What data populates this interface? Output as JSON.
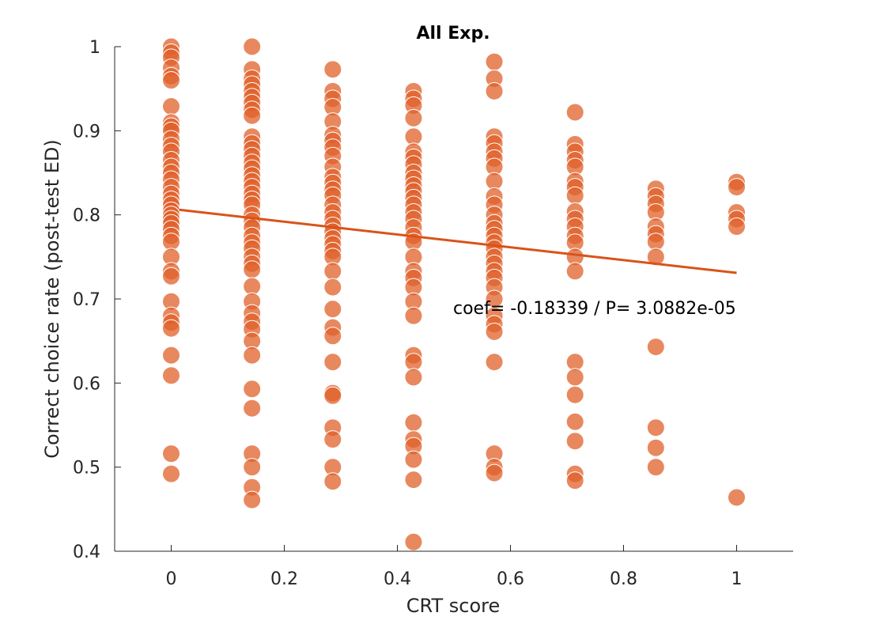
{
  "chart_data": {
    "type": "scatter",
    "title": "All Exp.",
    "xlabel": "CRT score",
    "ylabel": "Correct choice rate (post-test ED)",
    "xlim": [
      -0.1,
      1.1
    ],
    "ylim": [
      0.4,
      1.0
    ],
    "xticks": [
      "0",
      "0.2",
      "0.4",
      "0.6",
      "0.8",
      "1"
    ],
    "xtick_values": [
      0,
      0.2,
      0.4,
      0.6,
      0.8,
      1
    ],
    "yticks": [
      "0.4",
      "0.5",
      "0.6",
      "0.7",
      "0.8",
      "0.9",
      "1"
    ],
    "ytick_values": [
      0.4,
      0.5,
      0.6,
      0.7,
      0.8,
      0.9,
      1.0
    ],
    "grid": false,
    "annotation": "coef= -0.18339 / P= 3.0882e-05",
    "colors": {
      "marker": "#e0602a",
      "marker_edge": "#ffffff",
      "fit_line": "#d95319",
      "axis": "#262626"
    },
    "fit_line": {
      "x": [
        0.0143,
        1.0
      ],
      "y": [
        0.806,
        0.731
      ]
    },
    "series": [
      {
        "points": [
          [
            0,
            1.0
          ],
          [
            0,
            0.993
          ],
          [
            0,
            0.987
          ],
          [
            0,
            0.975
          ],
          [
            0,
            0.965
          ],
          [
            0,
            0.96
          ],
          [
            0,
            0.929
          ],
          [
            0,
            0.91
          ],
          [
            0,
            0.905
          ],
          [
            0,
            0.9
          ],
          [
            0,
            0.89
          ],
          [
            0,
            0.882
          ],
          [
            0,
            0.875
          ],
          [
            0,
            0.865
          ],
          [
            0,
            0.857
          ],
          [
            0,
            0.85
          ],
          [
            0,
            0.842
          ],
          [
            0,
            0.833
          ],
          [
            0,
            0.825
          ],
          [
            0,
            0.818
          ],
          [
            0,
            0.812
          ],
          [
            0,
            0.805
          ],
          [
            0,
            0.8
          ],
          [
            0,
            0.795
          ],
          [
            0,
            0.79
          ],
          [
            0,
            0.783
          ],
          [
            0,
            0.775
          ],
          [
            0,
            0.768
          ],
          [
            0,
            0.75
          ],
          [
            0,
            0.733
          ],
          [
            0,
            0.727
          ],
          [
            0,
            0.697
          ],
          [
            0,
            0.68
          ],
          [
            0,
            0.672
          ],
          [
            0,
            0.665
          ],
          [
            0,
            0.633
          ],
          [
            0,
            0.609
          ],
          [
            0,
            0.516
          ],
          [
            0,
            0.492
          ],
          [
            0.1429,
            1.0
          ],
          [
            0.1429,
            0.973
          ],
          [
            0.1429,
            0.962
          ],
          [
            0.1429,
            0.955
          ],
          [
            0.1429,
            0.947
          ],
          [
            0.1429,
            0.94
          ],
          [
            0.1429,
            0.933
          ],
          [
            0.1429,
            0.925
          ],
          [
            0.1429,
            0.918
          ],
          [
            0.1429,
            0.893
          ],
          [
            0.1429,
            0.885
          ],
          [
            0.1429,
            0.878
          ],
          [
            0.1429,
            0.87
          ],
          [
            0.1429,
            0.862
          ],
          [
            0.1429,
            0.855
          ],
          [
            0.1429,
            0.847
          ],
          [
            0.1429,
            0.84
          ],
          [
            0.1429,
            0.833
          ],
          [
            0.1429,
            0.825
          ],
          [
            0.1429,
            0.818
          ],
          [
            0.1429,
            0.812
          ],
          [
            0.1429,
            0.8
          ],
          [
            0.1429,
            0.793
          ],
          [
            0.1429,
            0.785
          ],
          [
            0.1429,
            0.775
          ],
          [
            0.1429,
            0.767
          ],
          [
            0.1429,
            0.76
          ],
          [
            0.1429,
            0.75
          ],
          [
            0.1429,
            0.742
          ],
          [
            0.1429,
            0.735
          ],
          [
            0.1429,
            0.715
          ],
          [
            0.1429,
            0.697
          ],
          [
            0.1429,
            0.683
          ],
          [
            0.1429,
            0.673
          ],
          [
            0.1429,
            0.664
          ],
          [
            0.1429,
            0.65
          ],
          [
            0.1429,
            0.633
          ],
          [
            0.1429,
            0.593
          ],
          [
            0.1429,
            0.57
          ],
          [
            0.1429,
            0.516
          ],
          [
            0.1429,
            0.5
          ],
          [
            0.1429,
            0.476
          ],
          [
            0.1429,
            0.461
          ],
          [
            0.2857,
            0.973
          ],
          [
            0.2857,
            0.947
          ],
          [
            0.2857,
            0.938
          ],
          [
            0.2857,
            0.928
          ],
          [
            0.2857,
            0.911
          ],
          [
            0.2857,
            0.895
          ],
          [
            0.2857,
            0.888
          ],
          [
            0.2857,
            0.88
          ],
          [
            0.2857,
            0.87
          ],
          [
            0.2857,
            0.857
          ],
          [
            0.2857,
            0.845
          ],
          [
            0.2857,
            0.838
          ],
          [
            0.2857,
            0.83
          ],
          [
            0.2857,
            0.823
          ],
          [
            0.2857,
            0.812
          ],
          [
            0.2857,
            0.803
          ],
          [
            0.2857,
            0.795
          ],
          [
            0.2857,
            0.787
          ],
          [
            0.2857,
            0.78
          ],
          [
            0.2857,
            0.772
          ],
          [
            0.2857,
            0.765
          ],
          [
            0.2857,
            0.757
          ],
          [
            0.2857,
            0.75
          ],
          [
            0.2857,
            0.733
          ],
          [
            0.2857,
            0.714
          ],
          [
            0.2857,
            0.688
          ],
          [
            0.2857,
            0.666
          ],
          [
            0.2857,
            0.656
          ],
          [
            0.2857,
            0.625
          ],
          [
            0.2857,
            0.588
          ],
          [
            0.2857,
            0.585
          ],
          [
            0.2857,
            0.547
          ],
          [
            0.2857,
            0.533
          ],
          [
            0.2857,
            0.5
          ],
          [
            0.2857,
            0.483
          ],
          [
            0.4286,
            0.947
          ],
          [
            0.4286,
            0.938
          ],
          [
            0.4286,
            0.93
          ],
          [
            0.4286,
            0.915
          ],
          [
            0.4286,
            0.893
          ],
          [
            0.4286,
            0.875
          ],
          [
            0.4286,
            0.868
          ],
          [
            0.4286,
            0.86
          ],
          [
            0.4286,
            0.85
          ],
          [
            0.4286,
            0.843
          ],
          [
            0.4286,
            0.835
          ],
          [
            0.4286,
            0.828
          ],
          [
            0.4286,
            0.82
          ],
          [
            0.4286,
            0.812
          ],
          [
            0.4286,
            0.803
          ],
          [
            0.4286,
            0.795
          ],
          [
            0.4286,
            0.785
          ],
          [
            0.4286,
            0.775
          ],
          [
            0.4286,
            0.768
          ],
          [
            0.4286,
            0.75
          ],
          [
            0.4286,
            0.733
          ],
          [
            0.4286,
            0.725
          ],
          [
            0.4286,
            0.714
          ],
          [
            0.4286,
            0.697
          ],
          [
            0.4286,
            0.68
          ],
          [
            0.4286,
            0.633
          ],
          [
            0.4286,
            0.625
          ],
          [
            0.4286,
            0.607
          ],
          [
            0.4286,
            0.553
          ],
          [
            0.4286,
            0.533
          ],
          [
            0.4286,
            0.525
          ],
          [
            0.4286,
            0.509
          ],
          [
            0.4286,
            0.485
          ],
          [
            0.4286,
            0.411
          ],
          [
            0.5714,
            0.982
          ],
          [
            0.5714,
            0.962
          ],
          [
            0.5714,
            0.947
          ],
          [
            0.5714,
            0.893
          ],
          [
            0.5714,
            0.885
          ],
          [
            0.5714,
            0.875
          ],
          [
            0.5714,
            0.867
          ],
          [
            0.5714,
            0.857
          ],
          [
            0.5714,
            0.84
          ],
          [
            0.5714,
            0.822
          ],
          [
            0.5714,
            0.812
          ],
          [
            0.5714,
            0.8
          ],
          [
            0.5714,
            0.79
          ],
          [
            0.5714,
            0.783
          ],
          [
            0.5714,
            0.775
          ],
          [
            0.5714,
            0.767
          ],
          [
            0.5714,
            0.76
          ],
          [
            0.5714,
            0.75
          ],
          [
            0.5714,
            0.742
          ],
          [
            0.5714,
            0.733
          ],
          [
            0.5714,
            0.725
          ],
          [
            0.5714,
            0.714
          ],
          [
            0.5714,
            0.7
          ],
          [
            0.5714,
            0.68
          ],
          [
            0.5714,
            0.67
          ],
          [
            0.5714,
            0.661
          ],
          [
            0.5714,
            0.625
          ],
          [
            0.5714,
            0.516
          ],
          [
            0.5714,
            0.5
          ],
          [
            0.5714,
            0.493
          ],
          [
            0.7143,
            0.922
          ],
          [
            0.7143,
            0.884
          ],
          [
            0.7143,
            0.875
          ],
          [
            0.7143,
            0.865
          ],
          [
            0.7143,
            0.857
          ],
          [
            0.7143,
            0.84
          ],
          [
            0.7143,
            0.833
          ],
          [
            0.7143,
            0.823
          ],
          [
            0.7143,
            0.804
          ],
          [
            0.7143,
            0.795
          ],
          [
            0.7143,
            0.786
          ],
          [
            0.7143,
            0.775
          ],
          [
            0.7143,
            0.767
          ],
          [
            0.7143,
            0.75
          ],
          [
            0.7143,
            0.733
          ],
          [
            0.7143,
            0.625
          ],
          [
            0.7143,
            0.607
          ],
          [
            0.7143,
            0.586
          ],
          [
            0.7143,
            0.554
          ],
          [
            0.7143,
            0.531
          ],
          [
            0.7143,
            0.492
          ],
          [
            0.7143,
            0.484
          ],
          [
            0.8571,
            0.831
          ],
          [
            0.8571,
            0.822
          ],
          [
            0.8571,
            0.813
          ],
          [
            0.8571,
            0.803
          ],
          [
            0.8571,
            0.786
          ],
          [
            0.8571,
            0.777
          ],
          [
            0.8571,
            0.768
          ],
          [
            0.8571,
            0.75
          ],
          [
            0.8571,
            0.643
          ],
          [
            0.8571,
            0.547
          ],
          [
            0.8571,
            0.523
          ],
          [
            0.8571,
            0.5
          ],
          [
            1.0,
            0.839
          ],
          [
            1.0,
            0.833
          ],
          [
            1.0,
            0.803
          ],
          [
            1.0,
            0.795
          ],
          [
            1.0,
            0.786
          ],
          [
            1.0,
            0.464
          ]
        ]
      }
    ]
  }
}
